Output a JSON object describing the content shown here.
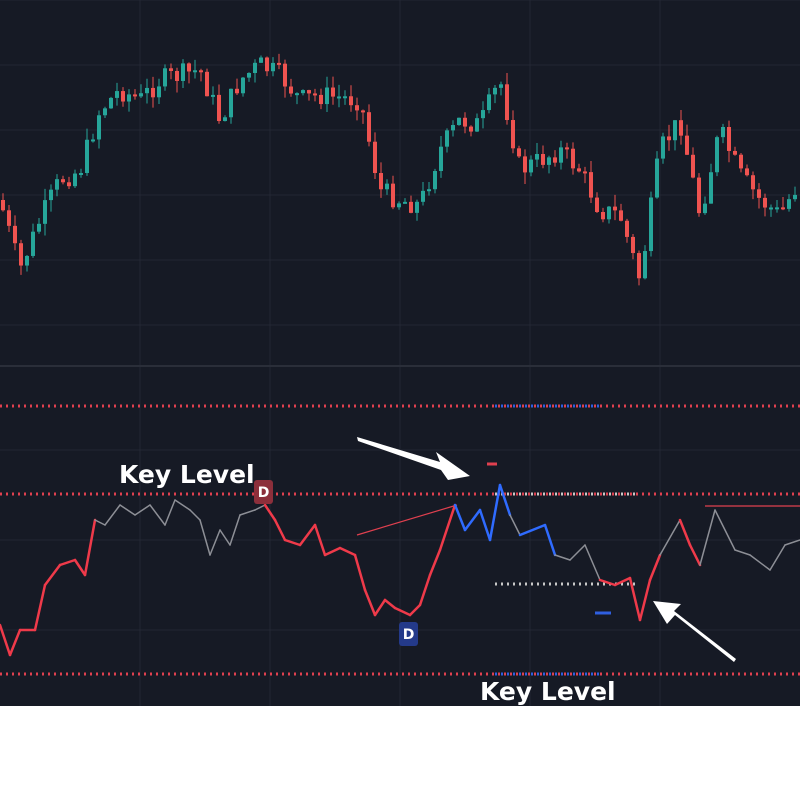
{
  "labels": [
    {
      "text": "Key Level"
    },
    {
      "text": "Key Level"
    }
  ],
  "markers": [
    {
      "text": "D"
    },
    {
      "text": "D"
    }
  ]
}
